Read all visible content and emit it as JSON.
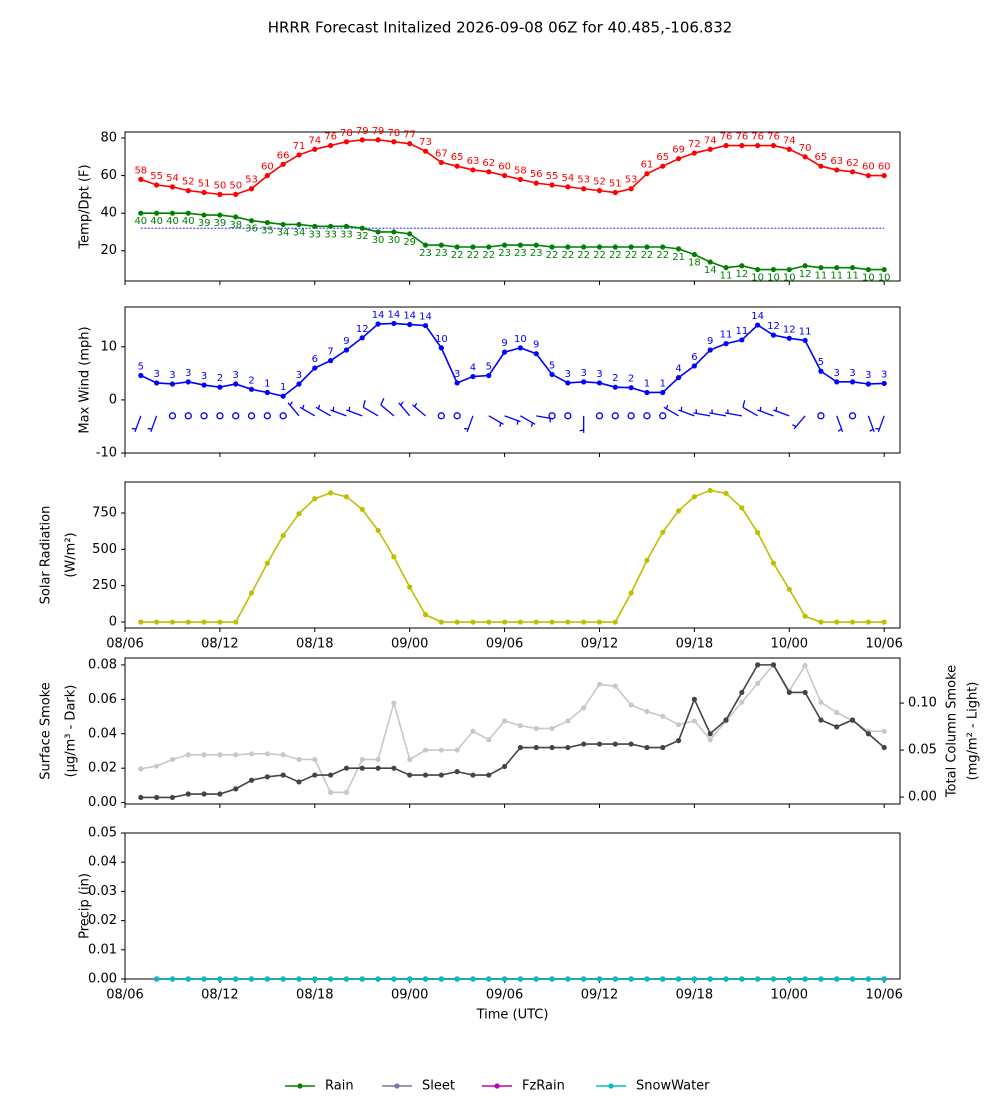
{
  "title": "HRRR Forecast Initalized 2026-09-08 06Z for 40.485,-106.832",
  "chart_data": [
    {
      "type": "line",
      "ylabel": "Temp/Dpt (F)",
      "x": [
        1,
        2,
        3,
        4,
        5,
        6,
        7,
        8,
        9,
        10,
        11,
        12,
        13,
        14,
        15,
        16,
        17,
        18,
        19,
        20,
        21,
        22,
        23,
        24,
        25,
        26,
        27,
        28,
        29,
        30,
        31,
        32,
        33,
        34,
        35,
        36,
        37,
        38,
        39,
        40,
        41,
        42,
        43,
        44,
        45,
        46,
        47,
        48
      ],
      "xlim": [
        0,
        49
      ],
      "xticks": [
        0,
        6,
        12,
        18,
        24,
        30,
        36,
        42,
        48
      ],
      "ylim": [
        3.9,
        83.2
      ],
      "yticks": [
        20,
        40,
        60,
        80
      ],
      "hline": {
        "value": 32,
        "color": "#0000ff"
      },
      "series": [
        {
          "color": "#ff0000",
          "labels": "above",
          "values": [
            58,
            55,
            54,
            52,
            51,
            50,
            50,
            53,
            60,
            66,
            71,
            74,
            76,
            78,
            79,
            79,
            78,
            77,
            73,
            67,
            65,
            63,
            62,
            60,
            58,
            56,
            55,
            54,
            53,
            52,
            51,
            53,
            61,
            65,
            69,
            72,
            74,
            76,
            76,
            76,
            76,
            74,
            70,
            65,
            63,
            62,
            60,
            60
          ]
        },
        {
          "color": "#008000",
          "labels": "below",
          "values": [
            40,
            40,
            40,
            40,
            39,
            39,
            38,
            36,
            35,
            34,
            34,
            33,
            33,
            33,
            32,
            30,
            30,
            29,
            23,
            23,
            22,
            22,
            22,
            23,
            23,
            23,
            22,
            22,
            22,
            22,
            22,
            22,
            22,
            22,
            21,
            18,
            14,
            11,
            12,
            10,
            10,
            10,
            12,
            11,
            11,
            11,
            10,
            10
          ]
        }
      ]
    },
    {
      "type": "line",
      "ylabel": "Max Wind (mph)",
      "x": [
        1,
        2,
        3,
        4,
        5,
        6,
        7,
        8,
        9,
        10,
        11,
        12,
        13,
        14,
        15,
        16,
        17,
        18,
        19,
        20,
        21,
        22,
        23,
        24,
        25,
        26,
        27,
        28,
        29,
        30,
        31,
        32,
        33,
        34,
        35,
        36,
        37,
        38,
        39,
        40,
        41,
        42,
        43,
        44,
        45,
        46,
        47,
        48
      ],
      "xlim": [
        0,
        49
      ],
      "xticks": [
        0,
        6,
        12,
        18,
        24,
        30,
        36,
        42,
        48
      ],
      "ylim": [
        -10,
        17.5
      ],
      "yticks": [
        -10,
        0,
        10
      ],
      "series": [
        {
          "color": "#0000ff",
          "labels": "above",
          "values": [
            4.6,
            3.2,
            3.0,
            3.4,
            2.8,
            2.4,
            3.0,
            2.0,
            1.4,
            0.7,
            3.0,
            6.0,
            7.4,
            9.4,
            11.7,
            14.3,
            14.4,
            14.2,
            14.0,
            9.8,
            3.2,
            4.4,
            4.6,
            9.0,
            9.8,
            8.7,
            4.8,
            3.2,
            3.4,
            3.2,
            2.4,
            2.3,
            1.4,
            1.4,
            4.2,
            6.4,
            9.4,
            10.6,
            11.3,
            14.1,
            12.2,
            11.6,
            11.2,
            5.4,
            3.4,
            3.4,
            3.0,
            3.1
          ],
          "value_labels": [
            "5",
            "3",
            "3",
            "3",
            "3",
            "2",
            "3",
            "2",
            "1",
            "1",
            "3",
            "6",
            "7",
            "9",
            "12",
            "14",
            "14",
            "14",
            "14",
            "10",
            "3",
            "4",
            "5",
            "9",
            "10",
            "9",
            "5",
            "3",
            "3",
            "3",
            "2",
            "2",
            "1",
            "1",
            "4",
            "6",
            "9",
            "11",
            "11",
            "14",
            "12",
            "12",
            "11",
            "5",
            "3",
            "3",
            "3",
            "3"
          ]
        }
      ],
      "barbs": {
        "y": -3,
        "color": "#0000ff",
        "direction": [
          200,
          200,
          0,
          0,
          0,
          0,
          0,
          0,
          0,
          0,
          320,
          300,
          300,
          290,
          290,
          300,
          310,
          320,
          310,
          0,
          0,
          200,
          120,
          110,
          120,
          100,
          0,
          0,
          180,
          0,
          0,
          0,
          0,
          0,
          300,
          290,
          280,
          280,
          280,
          300,
          290,
          290,
          220,
          0,
          160,
          0,
          160,
          200
        ],
        "speed": [
          5,
          5,
          0,
          0,
          0,
          0,
          0,
          0,
          0,
          0,
          5,
          5,
          5,
          5,
          5,
          10,
          10,
          5,
          5,
          0,
          0,
          5,
          5,
          5,
          5,
          5,
          0,
          0,
          5,
          0,
          0,
          0,
          0,
          0,
          5,
          5,
          5,
          5,
          5,
          10,
          5,
          5,
          5,
          0,
          5,
          0,
          5,
          5
        ]
      }
    },
    {
      "type": "line",
      "ylabel": [
        "Solar Radiation",
        "(W/m²)"
      ],
      "x": [
        1,
        2,
        3,
        4,
        5,
        6,
        7,
        8,
        9,
        10,
        11,
        12,
        13,
        14,
        15,
        16,
        17,
        18,
        19,
        20,
        21,
        22,
        23,
        24,
        25,
        26,
        27,
        28,
        29,
        30,
        31,
        32,
        33,
        34,
        35,
        36,
        37,
        38,
        39,
        40,
        41,
        42,
        43,
        44,
        45,
        46,
        47,
        48
      ],
      "xlim": [
        0,
        49
      ],
      "xticks": [
        {
          "value": 0,
          "label": "08/06"
        },
        {
          "value": 6,
          "label": "08/12"
        },
        {
          "value": 12,
          "label": "08/18"
        },
        {
          "value": 18,
          "label": "09/00"
        },
        {
          "value": 24,
          "label": "09/06"
        },
        {
          "value": 30,
          "label": "09/12"
        },
        {
          "value": 36,
          "label": "09/18"
        },
        {
          "value": 42,
          "label": "10/00"
        },
        {
          "value": 48,
          "label": "10/06"
        }
      ],
      "ylim": [
        -41,
        963
      ],
      "yticks": [
        0,
        250,
        500,
        750
      ],
      "series": [
        {
          "color": "#bfbf00",
          "values": [
            0,
            0,
            0,
            0,
            0,
            0,
            0,
            200,
            405,
            595,
            745,
            848,
            888,
            862,
            775,
            630,
            448,
            240,
            50,
            0,
            0,
            0,
            0,
            0,
            0,
            0,
            0,
            0,
            0,
            0,
            0,
            200,
            425,
            618,
            765,
            862,
            905,
            885,
            785,
            615,
            405,
            225,
            40,
            0,
            0,
            0,
            0,
            0
          ]
        }
      ]
    },
    {
      "type": "line",
      "ylabel": [
        "Surface Smoke",
        "(μg/m³ - Dark)"
      ],
      "y2label": [
        "Total Column Smoke",
        "(mg/m² - Light)"
      ],
      "x": [
        1,
        2,
        3,
        4,
        5,
        6,
        7,
        8,
        9,
        10,
        11,
        12,
        13,
        14,
        15,
        16,
        17,
        18,
        19,
        20,
        21,
        22,
        23,
        24,
        25,
        26,
        27,
        28,
        29,
        30,
        31,
        32,
        33,
        34,
        35,
        36,
        37,
        38,
        39,
        40,
        41,
        42,
        43,
        44,
        45,
        46,
        47,
        48
      ],
      "xlim": [
        0,
        49
      ],
      "xticks": [
        0,
        6,
        12,
        18,
        24,
        30,
        36,
        42,
        48
      ],
      "ylim": [
        -0.0008,
        0.084
      ],
      "yticks": [
        {
          "value": 0,
          "label": "0.00"
        },
        {
          "value": 0.02,
          "label": "0.02"
        },
        {
          "value": 0.04,
          "label": "0.04"
        },
        {
          "value": 0.06,
          "label": "0.06"
        },
        {
          "value": 0.08,
          "label": "0.08"
        }
      ],
      "y2lim": [
        -0.0074,
        0.148
      ],
      "y2ticks": [
        {
          "value": 0,
          "label": "0.00"
        },
        {
          "value": 0.05,
          "label": "0.05"
        },
        {
          "value": 0.1,
          "label": "0.10"
        }
      ],
      "series": [
        {
          "color": "#c8c8c8",
          "axis": "y2",
          "values": [
            0.03,
            0.033,
            0.04,
            0.045,
            0.045,
            0.045,
            0.045,
            0.046,
            0.046,
            0.045,
            0.04,
            0.04,
            0.005,
            0.005,
            0.04,
            0.04,
            0.1,
            0.04,
            0.05,
            0.05,
            0.05,
            0.07,
            0.061,
            0.081,
            0.076,
            0.073,
            0.073,
            0.081,
            0.095,
            0.12,
            0.118,
            0.098,
            0.091,
            0.086,
            0.077,
            0.081,
            0.061,
            0.081,
            0.101,
            0.121,
            0.141,
            0.113,
            0.14,
            0.101,
            0.09,
            0.081,
            0.07,
            0.07
          ]
        },
        {
          "color": "#444444",
          "values": [
            0.003,
            0.003,
            0.003,
            0.005,
            0.005,
            0.005,
            0.008,
            0.013,
            0.015,
            0.016,
            0.012,
            0.016,
            0.016,
            0.02,
            0.02,
            0.02,
            0.02,
            0.016,
            0.016,
            0.016,
            0.018,
            0.016,
            0.016,
            0.021,
            0.032,
            0.032,
            0.032,
            0.032,
            0.034,
            0.034,
            0.034,
            0.034,
            0.032,
            0.032,
            0.036,
            0.06,
            0.04,
            0.048,
            0.064,
            0.08,
            0.08,
            0.064,
            0.064,
            0.048,
            0.044,
            0.048,
            0.04,
            0.032
          ]
        }
      ]
    },
    {
      "type": "line",
      "ylabel": "Precip (in)",
      "xlabel": "Time (UTC)",
      "legend": "bottom",
      "x": [
        2,
        3,
        4,
        5,
        6,
        7,
        8,
        9,
        10,
        11,
        12,
        13,
        14,
        15,
        16,
        17,
        18,
        19,
        20,
        21,
        22,
        23,
        24,
        25,
        26,
        27,
        28,
        29,
        30,
        31,
        32,
        33,
        34,
        35,
        36,
        37,
        38,
        39,
        40,
        41,
        42,
        43,
        44,
        45,
        46,
        47,
        48
      ],
      "xlim": [
        0,
        49
      ],
      "xticks": [
        {
          "value": 0,
          "label": "08/06"
        },
        {
          "value": 6,
          "label": "08/12"
        },
        {
          "value": 12,
          "label": "08/18"
        },
        {
          "value": 18,
          "label": "09/00"
        },
        {
          "value": 24,
          "label": "09/06"
        },
        {
          "value": 30,
          "label": "09/12"
        },
        {
          "value": 36,
          "label": "09/18"
        },
        {
          "value": 42,
          "label": "10/00"
        },
        {
          "value": 48,
          "label": "10/06"
        }
      ],
      "ylim": [
        0,
        0.05
      ],
      "yticks": [
        {
          "value": 0,
          "label": "0.00"
        },
        {
          "value": 0.01,
          "label": "0.01"
        },
        {
          "value": 0.02,
          "label": "0.02"
        },
        {
          "value": 0.03,
          "label": "0.03"
        },
        {
          "value": 0.04,
          "label": "0.04"
        },
        {
          "value": 0.05,
          "label": "0.05"
        }
      ],
      "series": [
        {
          "name": "Rain",
          "color": "#008000",
          "values": [
            0,
            0,
            0,
            0,
            0,
            0,
            0,
            0,
            0,
            0,
            0,
            0,
            0,
            0,
            0,
            0,
            0,
            0,
            0,
            0,
            0,
            0,
            0,
            0,
            0,
            0,
            0,
            0,
            0,
            0,
            0,
            0,
            0,
            0,
            0,
            0,
            0,
            0,
            0,
            0,
            0,
            0,
            0,
            0,
            0,
            0,
            0
          ]
        },
        {
          "name": "Sleet",
          "color": "#8073a0",
          "values": [
            0,
            0,
            0,
            0,
            0,
            0,
            0,
            0,
            0,
            0,
            0,
            0,
            0,
            0,
            0,
            0,
            0,
            0,
            0,
            0,
            0,
            0,
            0,
            0,
            0,
            0,
            0,
            0,
            0,
            0,
            0,
            0,
            0,
            0,
            0,
            0,
            0,
            0,
            0,
            0,
            0,
            0,
            0,
            0,
            0,
            0,
            0
          ]
        },
        {
          "name": "FzRain",
          "color": "#bf00bf",
          "values": [
            0,
            0,
            0,
            0,
            0,
            0,
            0,
            0,
            0,
            0,
            0,
            0,
            0,
            0,
            0,
            0,
            0,
            0,
            0,
            0,
            0,
            0,
            0,
            0,
            0,
            0,
            0,
            0,
            0,
            0,
            0,
            0,
            0,
            0,
            0,
            0,
            0,
            0,
            0,
            0,
            0,
            0,
            0,
            0,
            0,
            0,
            0
          ]
        },
        {
          "name": "SnowWater",
          "color": "#00bfbf",
          "values": [
            0,
            0,
            0,
            0,
            0,
            0,
            0,
            0,
            0,
            0,
            0,
            0,
            0,
            0,
            0,
            0,
            0,
            0,
            0,
            0,
            0,
            0,
            0,
            0,
            0,
            0,
            0,
            0,
            0,
            0,
            0,
            0,
            0,
            0,
            0,
            0,
            0,
            0,
            0,
            0,
            0,
            0,
            0,
            0,
            0,
            0,
            0
          ]
        }
      ]
    }
  ]
}
